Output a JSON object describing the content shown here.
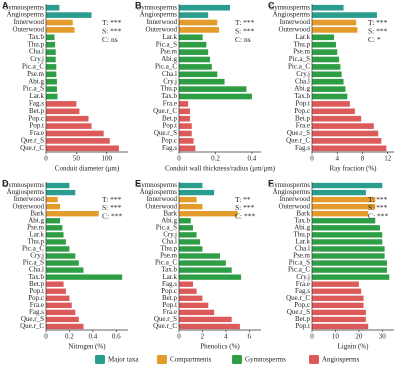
{
  "chart_data": [
    {
      "type": "bar",
      "panel": "A",
      "xlabel": "Conduit diameter (μm)",
      "annotations": [
        "T: ***",
        "S: ***",
        "C: ns"
      ],
      "categories": [
        "Gymnosperms",
        "Angiosperms",
        "Innerwood",
        "Outerwood",
        "Tax.b",
        "Thu.p",
        "Cha.l",
        "Cry.j",
        "Pic.a_C",
        "Pse.m",
        "Abi.g",
        "Pic.a_S",
        "Lar.k",
        "Fag.s",
        "Bet.p",
        "Pop.c",
        "Pop.t",
        "Fra.e",
        "Que.r_S",
        "Que.r_C"
      ],
      "series": [
        {
          "name": "Major taxa",
          "color": "#2a9d8f",
          "values": [
            22,
            75,
            null,
            null,
            null,
            null,
            null,
            null,
            null,
            null,
            null,
            null,
            null,
            null,
            null,
            null,
            null,
            null,
            null,
            null
          ]
        },
        {
          "name": "Compartments",
          "color": "#e39b2a",
          "values": [
            null,
            null,
            44,
            47,
            null,
            null,
            null,
            null,
            null,
            null,
            null,
            null,
            null,
            null,
            null,
            null,
            null,
            null,
            null,
            null
          ]
        },
        {
          "name": "Gymnosperms",
          "color": "#2e9e44",
          "values": [
            null,
            null,
            null,
            null,
            14,
            15,
            16,
            16,
            17,
            17,
            18,
            18,
            19,
            null,
            null,
            null,
            null,
            null,
            null,
            null
          ]
        },
        {
          "name": "Angiosperms",
          "color": "#dc5a5a",
          "values": [
            null,
            null,
            null,
            null,
            null,
            null,
            null,
            null,
            null,
            null,
            null,
            null,
            null,
            50,
            55,
            70,
            75,
            95,
            105,
            120
          ]
        }
      ],
      "xlim": [
        0,
        135
      ],
      "xticks": [
        0,
        50,
        100
      ]
    },
    {
      "type": "bar",
      "panel": "B",
      "xlabel": "Conduit wall thickness/radius (μm/μm)",
      "annotations": [
        "T: ***",
        "S: ***",
        "C: ns"
      ],
      "categories": [
        "Gymnosperms",
        "Angiosperms",
        "Innerwood",
        "Outerwood",
        "Lar.k",
        "Pic.a_S",
        "Pse.m",
        "Abi.g",
        "Pic.a_C",
        "Cha.l",
        "Cry.j",
        "Thu.p",
        "Tax.b",
        "Fra.e",
        "Que.r_C",
        "Bet.p",
        "Pop.t",
        "Que.r_S",
        "Pop.c",
        "Fag.s"
      ],
      "series": [
        {
          "name": "Major taxa",
          "color": "#2a9d8f",
          "values": [
            0.28,
            0.16,
            null,
            null,
            null,
            null,
            null,
            null,
            null,
            null,
            null,
            null,
            null,
            null,
            null,
            null,
            null,
            null,
            null,
            null
          ]
        },
        {
          "name": "Compartments",
          "color": "#e39b2a",
          "values": [
            null,
            null,
            0.21,
            0.22,
            null,
            null,
            null,
            null,
            null,
            null,
            null,
            null,
            null,
            null,
            null,
            null,
            null,
            null,
            null,
            null
          ]
        },
        {
          "name": "Gymnosperms",
          "color": "#2e9e44",
          "values": [
            null,
            null,
            null,
            null,
            0.13,
            0.15,
            0.16,
            0.17,
            0.18,
            0.21,
            0.25,
            0.37,
            0.4,
            null,
            null,
            null,
            null,
            null,
            null,
            null
          ]
        },
        {
          "name": "Angiosperms",
          "color": "#dc5a5a",
          "values": [
            null,
            null,
            null,
            null,
            null,
            null,
            null,
            null,
            null,
            null,
            null,
            null,
            null,
            0.05,
            0.06,
            0.06,
            0.07,
            0.07,
            0.08,
            0.09
          ]
        }
      ],
      "xlim": [
        0,
        0.45
      ],
      "xticks": [
        0,
        0.2,
        0.4
      ]
    },
    {
      "type": "bar",
      "panel": "C",
      "xlabel": "Ray fraction (%)",
      "annotations": [
        "T: ***",
        "S: ***",
        "C: *"
      ],
      "categories": [
        "Gymnosperms",
        "Angiosperms",
        "Innerwood",
        "Outerwood",
        "Lar.k",
        "Thu.p",
        "Pse.m",
        "Pic.a_S",
        "Pic.a_C",
        "Cry.j",
        "Cha.l",
        "Abi.g",
        "Tax.b",
        "Pop.t",
        "Pop.c",
        "Bet.p",
        "Fra.e",
        "Que.r_S",
        "Que.r_C",
        "Fag.s"
      ],
      "series": [
        {
          "name": "Major taxa",
          "color": "#2a9d8f",
          "values": [
            5,
            10.3,
            null,
            null,
            null,
            null,
            null,
            null,
            null,
            null,
            null,
            null,
            null,
            null,
            null,
            null,
            null,
            null,
            null,
            null
          ]
        },
        {
          "name": "Compartments",
          "color": "#e39b2a",
          "values": [
            null,
            null,
            7,
            7.2,
            null,
            null,
            null,
            null,
            null,
            null,
            null,
            null,
            null,
            null,
            null,
            null,
            null,
            null,
            null,
            null
          ]
        },
        {
          "name": "Gymnosperms",
          "color": "#2e9e44",
          "values": [
            null,
            null,
            null,
            null,
            3.5,
            3.8,
            4,
            4.3,
            4.5,
            4.7,
            5,
            5.3,
            5.6,
            null,
            null,
            null,
            null,
            null,
            null,
            null
          ]
        },
        {
          "name": "Angiosperms",
          "color": "#dc5a5a",
          "values": [
            null,
            null,
            null,
            null,
            null,
            null,
            null,
            null,
            null,
            null,
            null,
            null,
            null,
            6,
            6.8,
            7.8,
            9.8,
            10.5,
            11,
            11.8
          ]
        }
      ],
      "xlim": [
        0,
        13
      ],
      "xticks": [
        0,
        4,
        8,
        12
      ]
    },
    {
      "type": "bar",
      "panel": "D",
      "xlabel": "Nitrogen (%)",
      "annotations": [
        "T: ***",
        "S: ***",
        "C: ***"
      ],
      "categories": [
        "Gymnosperms",
        "Angiosperms",
        "Innerwood",
        "Outerwood",
        "Bark",
        "Abi.g",
        "Pse.m",
        "Lar.k",
        "Thu.p",
        "Pic.a_C",
        "Cry.j",
        "Pic.a_S",
        "Cha.l",
        "Tax.b",
        "Bet.p",
        "Pop.t",
        "Pop.c",
        "Fra.e",
        "Fag.s",
        "Que.r_S",
        "Que.r_C"
      ],
      "series": [
        {
          "name": "Major taxa",
          "color": "#2a9d8f",
          "values": [
            0.2,
            0.25,
            null,
            null,
            null,
            null,
            null,
            null,
            null,
            null,
            null,
            null,
            null,
            null,
            null,
            null,
            null,
            null,
            null,
            null,
            null
          ]
        },
        {
          "name": "Compartments",
          "color": "#e39b2a",
          "values": [
            null,
            null,
            0.1,
            0.12,
            0.45,
            null,
            null,
            null,
            null,
            null,
            null,
            null,
            null,
            null,
            null,
            null,
            null,
            null,
            null,
            null,
            null
          ]
        },
        {
          "name": "Gymnosperms",
          "color": "#2e9e44",
          "values": [
            null,
            null,
            null,
            null,
            null,
            0.12,
            0.14,
            0.15,
            0.17,
            0.2,
            0.25,
            0.28,
            0.32,
            0.65,
            null,
            null,
            null,
            null,
            null,
            null,
            null
          ]
        },
        {
          "name": "Angiosperms",
          "color": "#dc5a5a",
          "values": [
            null,
            null,
            null,
            null,
            null,
            null,
            null,
            null,
            null,
            null,
            null,
            null,
            null,
            null,
            0.15,
            0.17,
            0.2,
            0.22,
            0.25,
            0.28,
            0.32
          ]
        }
      ],
      "xlim": [
        0,
        0.7
      ],
      "xticks": [
        0,
        0.2,
        0.4,
        0.6
      ]
    },
    {
      "type": "bar",
      "panel": "E",
      "xlabel": "Phenolics (%)",
      "annotations": [
        "T: **",
        "S: ***",
        "C: ***"
      ],
      "categories": [
        "Gymnosperms",
        "Angiosperms",
        "Innerwood",
        "Outerwood",
        "Bark",
        "Abi.g",
        "Pic.a_S",
        "Cry.j",
        "Cha.l",
        "Thu.p",
        "Pse.m",
        "Pic.a_C",
        "Tax.b",
        "Lar.k",
        "Fag.s",
        "Pop.c",
        "Bet.p",
        "Pop.t",
        "Fra.e",
        "Que.r_S",
        "Que.r_C"
      ],
      "series": [
        {
          "name": "Major taxa",
          "color": "#2a9d8f",
          "values": [
            2,
            3,
            null,
            null,
            null,
            null,
            null,
            null,
            null,
            null,
            null,
            null,
            null,
            null,
            null,
            null,
            null,
            null,
            null,
            null,
            null
          ]
        },
        {
          "name": "Compartments",
          "color": "#e39b2a",
          "values": [
            null,
            null,
            1.5,
            2,
            5,
            null,
            null,
            null,
            null,
            null,
            null,
            null,
            null,
            null,
            null,
            null,
            null,
            null,
            null,
            null,
            null
          ]
        },
        {
          "name": "Gymnosperms",
          "color": "#2e9e44",
          "values": [
            null,
            null,
            null,
            null,
            null,
            1,
            1.2,
            1.5,
            1.8,
            2,
            3.5,
            4,
            4.5,
            5.3,
            null,
            null,
            null,
            null,
            null,
            null,
            null
          ]
        },
        {
          "name": "Angiosperms",
          "color": "#dc5a5a",
          "values": [
            null,
            null,
            null,
            null,
            null,
            null,
            null,
            null,
            null,
            null,
            null,
            null,
            null,
            null,
            1.2,
            1.5,
            2,
            2.5,
            3,
            4.5,
            5.2
          ]
        }
      ],
      "xlim": [
        0,
        7
      ],
      "xticks": [
        0,
        2,
        4,
        6
      ]
    },
    {
      "type": "bar",
      "panel": "F",
      "xlabel": "Lignin (%)",
      "annotations": [
        "T: ***",
        "S: ***",
        "C: ***"
      ],
      "categories": [
        "Gymnosperms",
        "Angiosperms",
        "Innerwood",
        "Outerwood",
        "Bark",
        "Tax.b",
        "Abi.g",
        "Thu.p",
        "Lar.k",
        "Cha.l",
        "Pse.m",
        "Pic.a_S",
        "Pic.a_C",
        "Cry.j",
        "Fra.e",
        "Fag.s",
        "Que.r_C",
        "Pop.c",
        "Que.r_S",
        "Bet.p",
        "Pop.t"
      ],
      "series": [
        {
          "name": "Major taxa",
          "color": "#2a9d8f",
          "values": [
            30,
            23,
            null,
            null,
            null,
            null,
            null,
            null,
            null,
            null,
            null,
            null,
            null,
            null,
            null,
            null,
            null,
            null,
            null,
            null,
            null
          ]
        },
        {
          "name": "Compartments",
          "color": "#e39b2a",
          "values": [
            null,
            null,
            27,
            27,
            24,
            null,
            null,
            null,
            null,
            null,
            null,
            null,
            null,
            null,
            null,
            null,
            null,
            null,
            null,
            null,
            null
          ]
        },
        {
          "name": "Gymnosperms",
          "color": "#2e9e44",
          "values": [
            null,
            null,
            null,
            null,
            null,
            27,
            29,
            30,
            30,
            31,
            31,
            32,
            32,
            33,
            null,
            null,
            null,
            null,
            null,
            null,
            null
          ]
        },
        {
          "name": "Angiosperms",
          "color": "#dc5a5a",
          "values": [
            null,
            null,
            null,
            null,
            null,
            null,
            null,
            null,
            null,
            null,
            null,
            null,
            null,
            null,
            20,
            21,
            22,
            22,
            23,
            23,
            24
          ]
        }
      ],
      "xlim": [
        0,
        35
      ],
      "xticks": [
        0,
        10,
        20,
        30
      ]
    }
  ]
}
